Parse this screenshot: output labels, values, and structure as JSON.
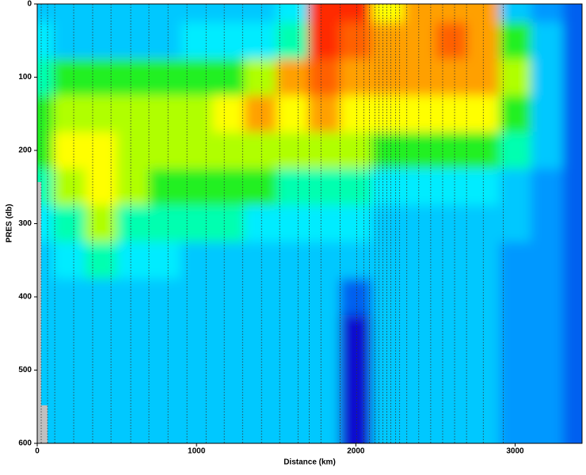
{
  "chart_data": {
    "type": "contour",
    "xlabel": "Distance (km)",
    "ylabel": "PRES (db)",
    "xlim": [
      0,
      3420
    ],
    "ylim": [
      0,
      600
    ],
    "xticks": [
      0,
      1000,
      2000,
      3000
    ],
    "yticks": [
      0,
      100,
      200,
      300,
      400,
      500,
      600
    ],
    "y_reversed": true,
    "x": [
      0,
      200,
      400,
      600,
      800,
      1000,
      1200,
      1400,
      1600,
      1800,
      2000,
      2200,
      2400,
      2600,
      2800,
      3000,
      3200,
      3400
    ],
    "y": [
      0,
      50,
      100,
      150,
      200,
      250,
      300,
      350,
      400,
      450,
      500,
      550,
      600
    ],
    "z": [
      [
        3,
        4,
        5,
        6,
        6,
        5,
        4,
        3,
        3,
        3,
        3,
        3,
        3
      ],
      [
        3,
        3,
        6,
        7,
        8,
        7,
        5,
        4,
        3,
        3,
        3,
        3,
        3
      ],
      [
        3,
        3,
        6,
        7,
        8,
        8,
        7,
        5,
        3,
        3,
        3,
        3,
        3
      ],
      [
        3,
        3,
        6,
        7,
        7,
        7,
        5,
        4,
        3,
        3,
        3,
        3,
        3
      ],
      [
        3,
        3,
        6,
        7,
        7,
        6,
        5,
        4,
        3,
        3,
        3,
        3,
        3
      ],
      [
        3,
        4,
        6,
        7,
        7,
        6,
        5,
        3,
        3,
        3,
        3,
        3,
        3
      ],
      [
        3,
        4,
        6,
        8,
        7,
        6,
        5,
        3,
        3,
        3,
        3,
        3,
        3
      ],
      [
        3,
        4,
        7,
        9,
        7,
        6,
        4,
        3,
        3,
        3,
        3,
        3,
        3
      ],
      [
        4,
        5,
        9,
        8,
        7,
        5,
        4,
        3,
        3,
        3,
        3,
        3,
        3
      ],
      [
        11,
        11,
        10,
        9,
        7,
        5,
        4,
        3,
        3,
        3,
        3,
        3,
        3
      ],
      [
        11,
        10,
        9,
        8,
        7,
        5,
        4,
        3,
        1,
        0,
        0,
        0,
        0
      ],
      [
        8,
        9,
        9,
        8,
        6,
        4,
        3,
        3,
        3,
        3,
        3,
        3,
        3
      ],
      [
        9,
        9,
        9,
        8,
        6,
        4,
        3,
        3,
        3,
        3,
        3,
        3,
        3
      ],
      [
        9,
        10,
        9,
        8,
        6,
        4,
        3,
        3,
        3,
        3,
        3,
        3,
        3
      ],
      [
        9,
        9,
        9,
        8,
        6,
        4,
        3,
        3,
        3,
        3,
        3,
        3,
        3
      ],
      [
        3,
        6,
        7,
        6,
        5,
        3,
        3,
        2,
        2,
        2,
        2,
        2,
        2
      ],
      [
        2,
        3,
        3,
        3,
        3,
        2,
        2,
        2,
        2,
        2,
        2,
        2,
        2
      ],
      [
        1,
        1,
        1,
        1,
        1,
        1,
        1,
        1,
        1,
        1,
        1,
        1,
        1
      ]
    ],
    "colors": [
      "#1010d0",
      "#0060f0",
      "#0098ff",
      "#00c8ff",
      "#00ecff",
      "#00ffb0",
      "#20f020",
      "#b0ff00",
      "#ffff00",
      "#ffa000",
      "#ff6000",
      "#ff2a00"
    ],
    "stations": [
      25,
      65,
      110,
      229,
      348,
      463,
      587,
      701,
      821,
      940,
      1060,
      1174,
      1289,
      1408,
      1522,
      1637,
      1707,
      1781,
      1901,
      2005,
      2050,
      2085,
      2120,
      2145,
      2170,
      2195,
      2220,
      2250,
      2275,
      2320,
      2395,
      2470,
      2545,
      2620,
      2695,
      2800,
      2925
    ]
  }
}
